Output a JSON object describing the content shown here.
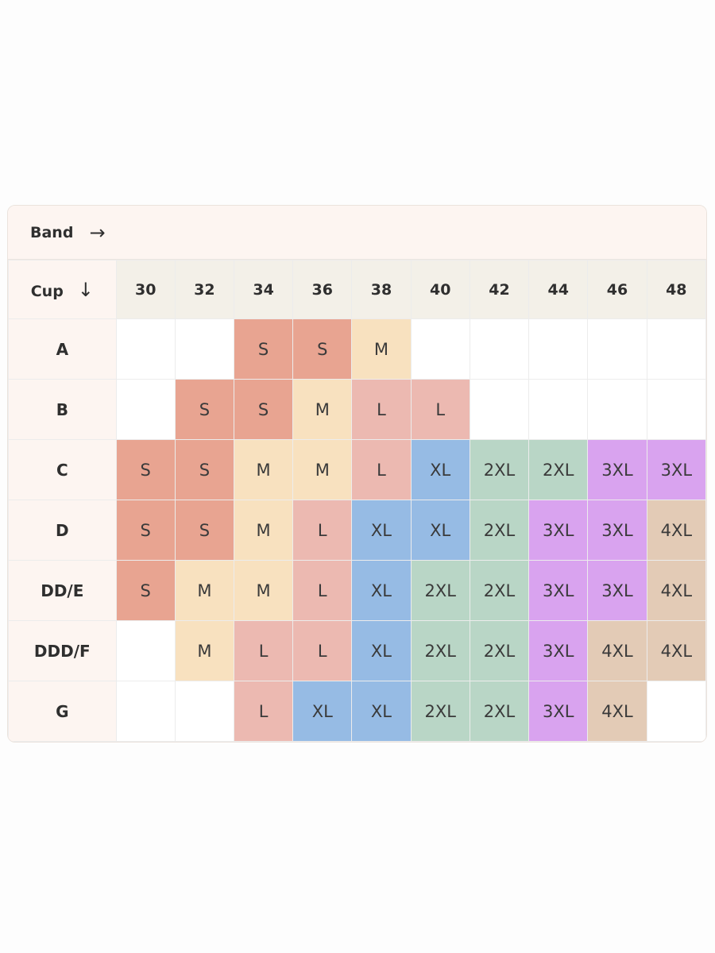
{
  "header": {
    "band_label": "Band",
    "band_arrow": "→",
    "cup_label": "Cup",
    "cup_arrow": "↓"
  },
  "bands": [
    "30",
    "32",
    "34",
    "36",
    "38",
    "40",
    "42",
    "44",
    "46",
    "48"
  ],
  "rows": [
    {
      "cup": "A",
      "sizes": [
        "",
        "",
        "S",
        "S",
        "M",
        "",
        "",
        "",
        "",
        ""
      ]
    },
    {
      "cup": "B",
      "sizes": [
        "",
        "S",
        "S",
        "M",
        "L",
        "L",
        "",
        "",
        "",
        ""
      ]
    },
    {
      "cup": "C",
      "sizes": [
        "S",
        "S",
        "M",
        "M",
        "L",
        "XL",
        "2XL",
        "2XL",
        "3XL",
        "3XL"
      ]
    },
    {
      "cup": "D",
      "sizes": [
        "S",
        "S",
        "M",
        "L",
        "XL",
        "XL",
        "2XL",
        "3XL",
        "3XL",
        "4XL"
      ]
    },
    {
      "cup": "DD/E",
      "sizes": [
        "S",
        "M",
        "M",
        "L",
        "XL",
        "2XL",
        "2XL",
        "3XL",
        "3XL",
        "4XL"
      ]
    },
    {
      "cup": "DDD/F",
      "sizes": [
        "",
        "M",
        "L",
        "L",
        "XL",
        "2XL",
        "2XL",
        "3XL",
        "4XL",
        "4XL"
      ]
    },
    {
      "cup": "G",
      "sizes": [
        "",
        "",
        "L",
        "XL",
        "XL",
        "2XL",
        "2XL",
        "3XL",
        "4XL",
        ""
      ]
    }
  ],
  "size_colors": {
    "S": "#e8a491",
    "M": "#f8e1bf",
    "L": "#ecb9b1",
    "XL": "#96bbe4",
    "2XL": "#b9d6c6",
    "3XL": "#d9a3ef",
    "4XL": "#e3cbb6"
  }
}
